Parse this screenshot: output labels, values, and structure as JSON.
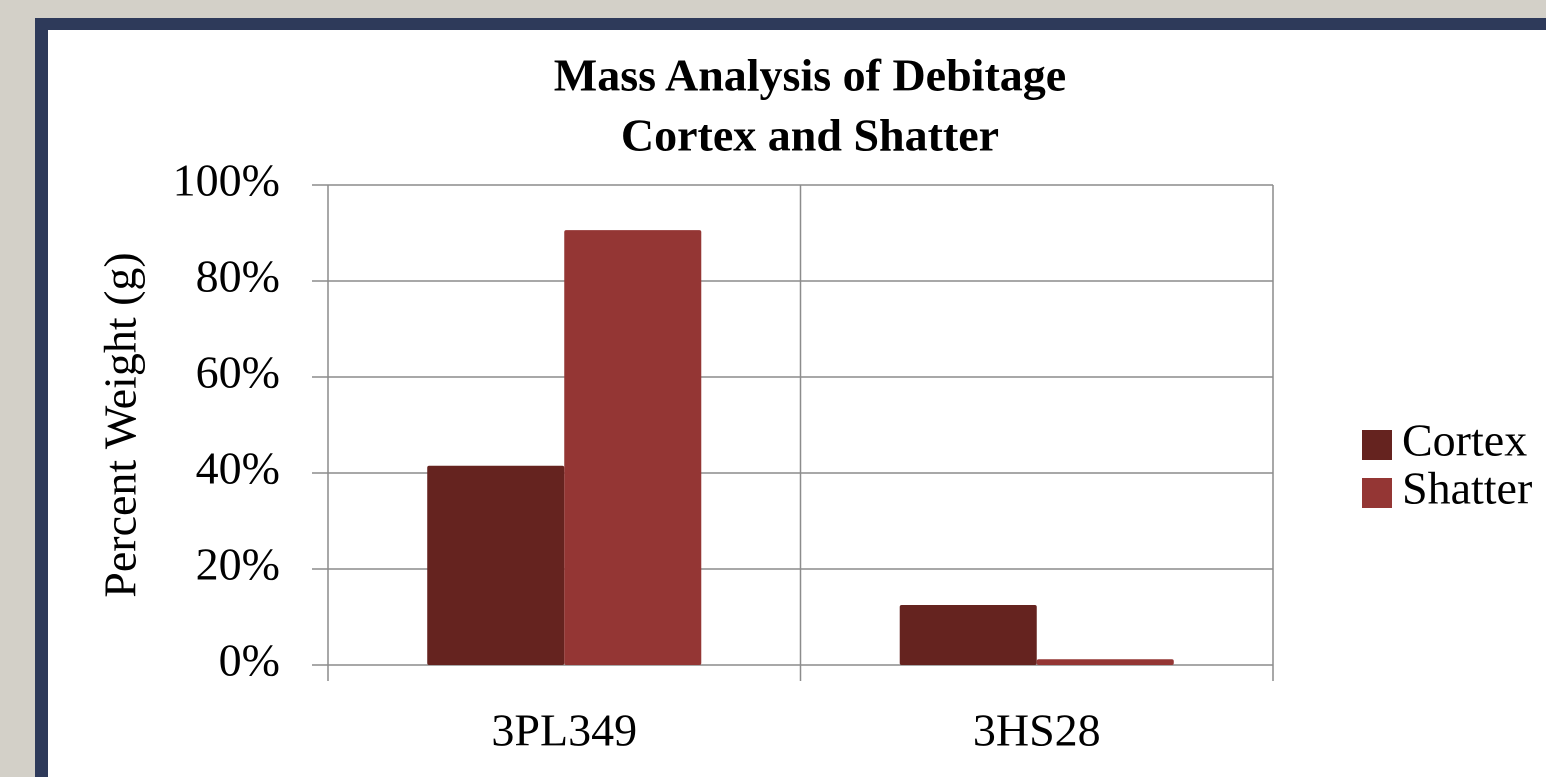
{
  "chart_data": {
    "type": "bar",
    "title": [
      "Mass Analysis of Debitage",
      "Cortex and Shatter"
    ],
    "y_label": "Percent Weight (g)",
    "categories": [
      "3PL349",
      "3HS28"
    ],
    "series": [
      {
        "name": "Cortex",
        "color": "#65231f",
        "values": [
          41.5,
          12.5
        ]
      },
      {
        "name": "Shatter",
        "color": "#943634",
        "values": [
          90.6,
          1.2
        ]
      }
    ],
    "ylim": [
      0,
      100
    ],
    "yticks": [
      {
        "value": 0,
        "label": "0%"
      },
      {
        "value": 20,
        "label": "20%"
      },
      {
        "value": 40,
        "label": "40%"
      },
      {
        "value": 60,
        "label": "60%"
      },
      {
        "value": 80,
        "label": "80%"
      },
      {
        "value": 100,
        "label": "100%"
      }
    ],
    "grid": true,
    "legend": "right"
  }
}
